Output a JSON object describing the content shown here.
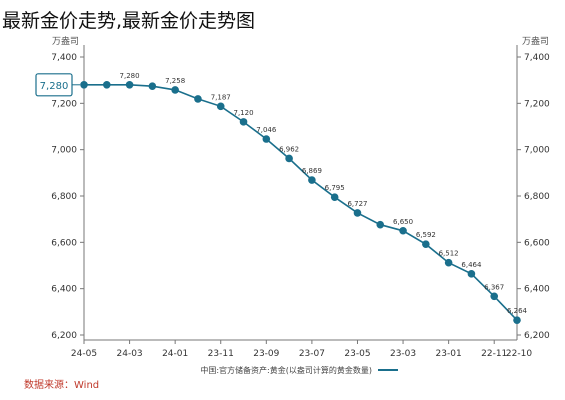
{
  "page": {
    "title": "最新金价走势,最新金价走势图"
  },
  "chart_data": {
    "type": "line",
    "unit_label": "万盎司",
    "series": [
      {
        "name": "中国:官方储备资产:黄金(以盎司计算的黄金数量)",
        "color": "#1a6f8c"
      }
    ],
    "x": [
      "22-10",
      "22-11",
      "22-12",
      "23-01",
      "23-02",
      "23-03",
      "23-04",
      "23-05",
      "23-06",
      "23-07",
      "23-08",
      "23-09",
      "23-10",
      "23-11",
      "23-12",
      "24-01",
      "24-02",
      "24-03",
      "24-04",
      "24-05"
    ],
    "values": [
      6264,
      6367,
      6464,
      6512,
      6592,
      6650,
      6676,
      6727,
      6795,
      6869,
      6962,
      7046,
      7120,
      7187,
      7219,
      7258,
      7274,
      7280,
      7280,
      7280
    ],
    "data_labels": {
      "22-10": "6,264",
      "22-11": "6,367",
      "22-12": "6,464",
      "23-01": "6,512",
      "23-02": "6,592",
      "23-03": "6,650",
      "23-05": "6,727",
      "23-06": "6,795",
      "23-07": "6,869",
      "23-08": "6,962",
      "23-09": "7,046",
      "23-10": "7,120",
      "23-11": "7,187",
      "24-01": "7,258",
      "24-03": "7,280"
    },
    "callout": {
      "x": "24-05",
      "text": "7,280"
    },
    "xticks": [
      "24-05",
      "24-03",
      "24-01",
      "23-11",
      "23-09",
      "23-07",
      "23-05",
      "23-03",
      "23-01",
      "22-11"
    ],
    "yticks": [
      6200,
      6400,
      6600,
      6800,
      7000,
      7200,
      7400
    ],
    "ytick_labels": [
      "6,200",
      "6,400",
      "6,600",
      "6,800",
      "7,000",
      "7,200",
      "7,400"
    ],
    "ylim": [
      6200,
      7400
    ],
    "x_reversed": true,
    "dual_y_axis": true,
    "grid": false,
    "legend_position": "bottom",
    "source": "数据来源：Wind",
    "note": "image is horizontally mirrored"
  }
}
